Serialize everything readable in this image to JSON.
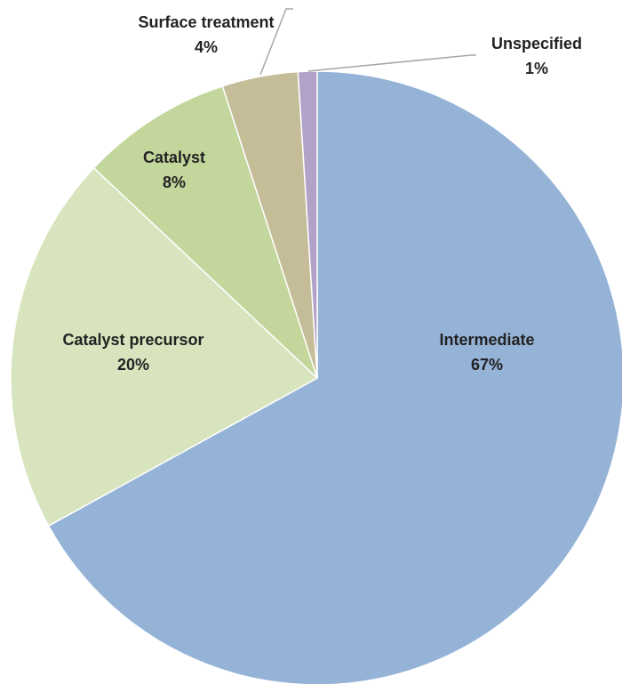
{
  "chart_data": {
    "type": "pie",
    "categories": [
      "Intermediate",
      "Catalyst precursor",
      "Catalyst",
      "Surface treatment",
      "Unspecified"
    ],
    "values": [
      67,
      20,
      8,
      4,
      1
    ],
    "value_labels": [
      "67%",
      "20%",
      "8%",
      "4%",
      "1%"
    ],
    "colors": [
      "#95b3d7",
      "#d7e4bd",
      "#c3d69b",
      "#c4bd97",
      "#b3a2c7"
    ]
  }
}
